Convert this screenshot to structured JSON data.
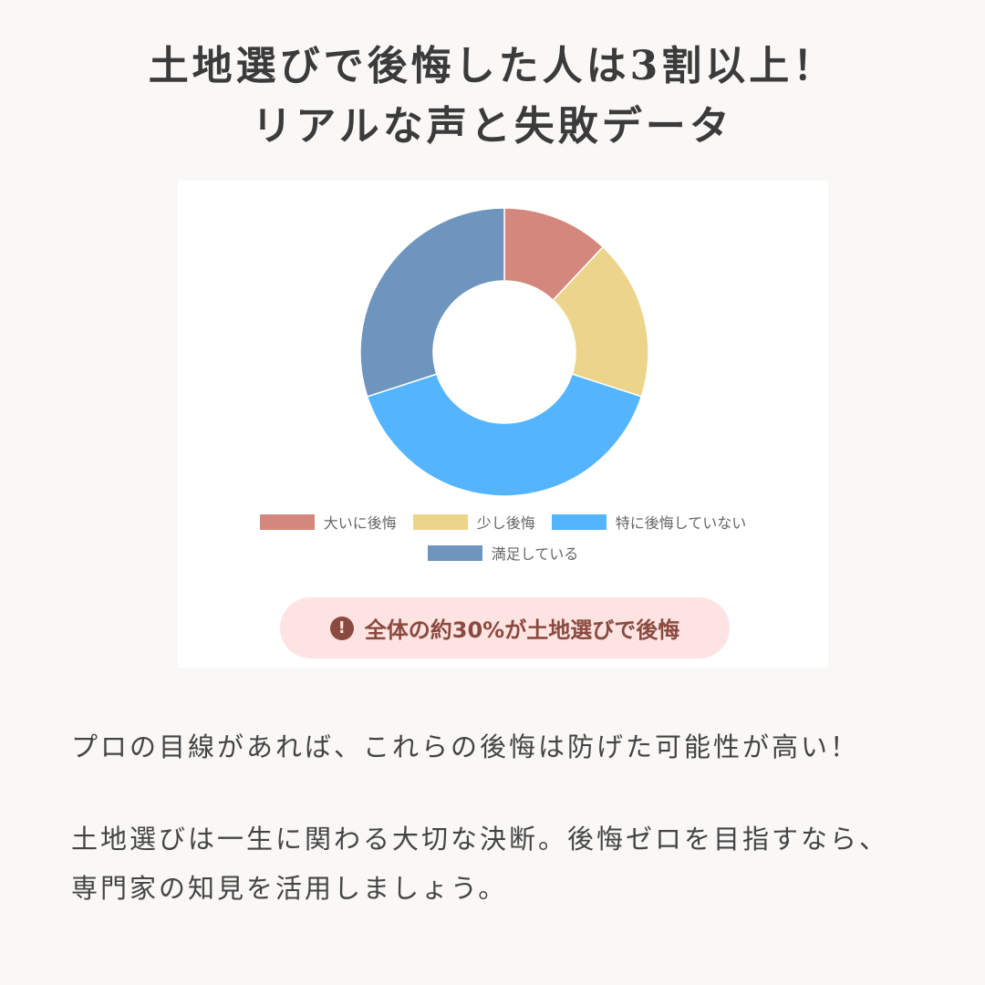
{
  "header": {
    "title_line1": "土地選びで後悔した人は3割以上！",
    "title_line2": "リアルな声と失敗データ"
  },
  "chart_data": {
    "type": "pie",
    "variant": "donut",
    "categories": [
      "大いに後悔",
      "少し後悔",
      "特に後悔していない",
      "満足している"
    ],
    "values": [
      12,
      18,
      40,
      30
    ],
    "colors": [
      "#d4877d",
      "#ecd48a",
      "#54b5fe",
      "#6e95bd"
    ],
    "legend": "bottom"
  },
  "badge": {
    "icon": "exclamation-circle-icon",
    "text": "全体の約30%が土地選びで後悔"
  },
  "body": {
    "line1": "プロの目線があれば、これらの後悔は防げた可能性が高い！",
    "line2": "土地選びは一生に関わる大切な決断。後悔ゼロを目指すなら、",
    "line3": "専門家の知見を活用しましょう。"
  }
}
